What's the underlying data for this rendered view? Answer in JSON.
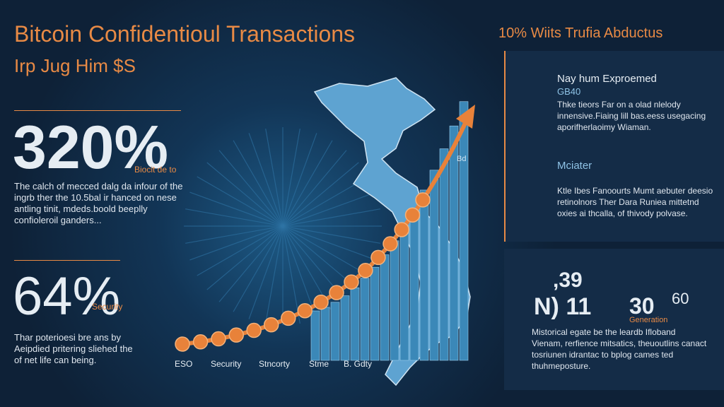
{
  "header": {
    "title": "Bitcoin Confidentioul Transactions",
    "subtitle": "Irp Jug Him $S"
  },
  "left": {
    "stats": [
      {
        "value": "320%",
        "label": "Biocit de to",
        "text": "The calch of mecced dalg da infour of the ingrb ther the 10.5bal ir hanced on nese antling tinit, mdeds.boold beeplly confioleroil ganders..."
      },
      {
        "value": "64%",
        "label": "Security",
        "text": "Thar poterioesi bre ans by Aeipdied pritering sliehed the of net life can being."
      }
    ]
  },
  "center": {
    "bar_label": "Bd",
    "x_labels": [
      "ESO",
      "Security",
      "Stncorty",
      "Stme",
      "B. Gdty"
    ]
  },
  "right": {
    "title": "10% Wiits Trufia Abductus",
    "items": [
      {
        "title": "Nay hum Exproemed",
        "subtitle": "GB40",
        "text": "Thke tieors Far on a olad nlelody innensive.Fiaing lill bas.eess usegacing aporifherlaoimy Wiaman."
      },
      {
        "title": "Mciater",
        "text": "Ktle Ibes Fanoourts Mumt aebuter deesio retinolnors Ther Dara Runiea mittetnd oxies ai thcalla, of thivody polvase."
      }
    ],
    "stats": [
      ",39",
      "N) 11",
      "30",
      "60"
    ],
    "stats_label": "Generation",
    "text": "Mistorical egate be the leardb Ifloband Vienam, rerfience mitsatics, theuoutlins canact tosriunen idrantac to bplog cames ted thuhmeposture."
  }
}
